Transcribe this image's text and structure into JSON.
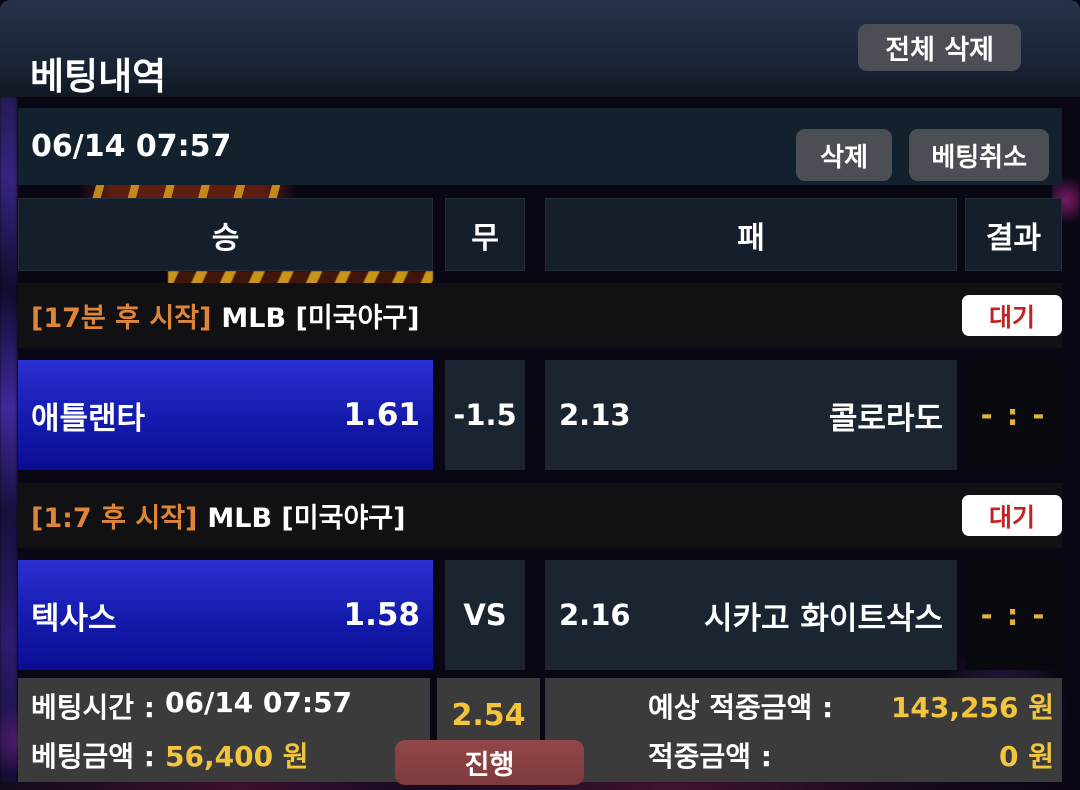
{
  "header": {
    "title": "베팅내역",
    "delete_all_label": "전체 삭제"
  },
  "slip": {
    "placed_at": "06/14 07:57",
    "delete_label": "삭제",
    "cancel_label": "베팅취소",
    "columns": {
      "win": "승",
      "draw": "무",
      "lose": "패",
      "result": "결과"
    },
    "matches": [
      {
        "start_note": "[17분 후 시작]",
        "league": "MLB [미국야구]",
        "status": "대기",
        "home_team": "애틀랜타",
        "home_odds": "1.61",
        "draw_value": "-1.5",
        "away_odds": "2.13",
        "away_team": "콜로라도",
        "score": "- : -"
      },
      {
        "start_note": "[1:7 후 시작]",
        "league": "MLB [미국야구]",
        "status": "대기",
        "home_team": "텍사스",
        "home_odds": "1.58",
        "draw_value": "VS",
        "away_odds": "2.16",
        "away_team": "시카고 화이트삭스",
        "score": "- : -"
      }
    ],
    "summary": {
      "bet_time_label": "베팅시간 :",
      "bet_time_value": "06/14 07:57",
      "bet_amount_label": "베팅금액 :",
      "bet_amount_value": "56,400 원",
      "total_odds": "2.54",
      "status_label": "진행",
      "expected_label": "예상 적중금액 :",
      "expected_value": "143,256 원",
      "won_label": "적중금액 :",
      "won_value": "0 원"
    }
  },
  "colors": {
    "accent-blue": "#151cae",
    "gold": "#f2c53d",
    "orange": "#df8538",
    "badge-red": "#c32222",
    "panel-navy": "#1a2531",
    "panel-gray": "#3b3b3c",
    "button-gray": "#4b4f55",
    "maroon": "#8a3f42"
  }
}
